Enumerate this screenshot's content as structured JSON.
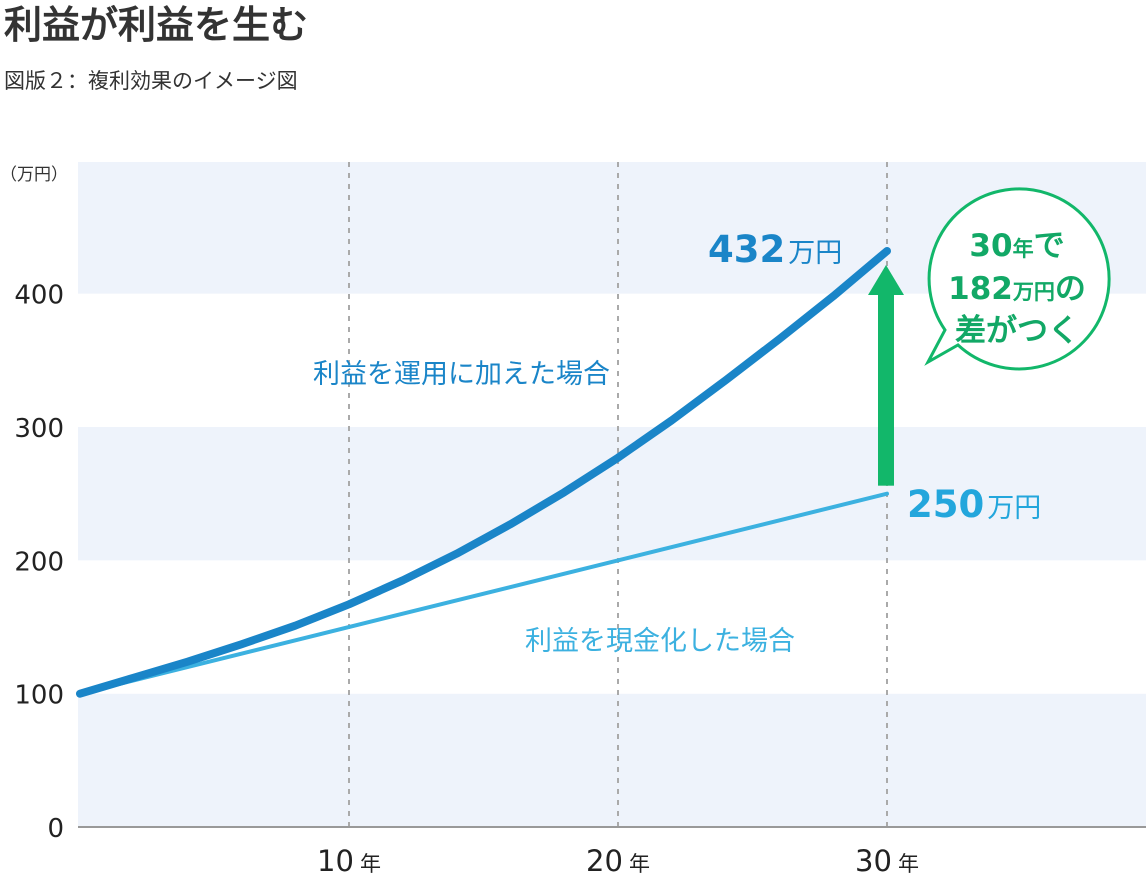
{
  "header": {
    "title": "利益が利益を生む",
    "subtitle": "図版２：複利効果のイメージ図"
  },
  "chart_data": {
    "type": "line",
    "y_unit": "（万円）",
    "xlim": [
      0,
      38
    ],
    "ylim": [
      0,
      500
    ],
    "y_ticks": [
      0,
      100,
      200,
      300,
      400
    ],
    "y_tick_labels": [
      "0",
      "100",
      "200",
      "300",
      "400"
    ],
    "x_ticks": [
      {
        "value": 10,
        "num": "10",
        "suffix": "年"
      },
      {
        "value": 20,
        "num": "20",
        "suffix": "年"
      },
      {
        "value": 30,
        "num": "30",
        "suffix": "年"
      }
    ],
    "grid": {
      "vertical_dashed": true,
      "horizontal_bands": true
    },
    "series": [
      {
        "name": "利益を運用に加えた場合",
        "color": "#1a85c8",
        "x": [
          0,
          2,
          4,
          6,
          8,
          10,
          12,
          14,
          16,
          18,
          20,
          22,
          24,
          26,
          28,
          30
        ],
        "values": [
          100,
          112,
          124,
          137,
          151,
          167,
          185,
          205,
          227,
          251,
          277,
          305,
          335,
          366,
          398,
          432
        ]
      },
      {
        "name": "利益を現金化した場合",
        "color": "#3cb1e0",
        "x": [
          0,
          30
        ],
        "values": [
          100,
          250
        ]
      }
    ],
    "annotations": {
      "end_compound": {
        "value": "432",
        "unit": "万円"
      },
      "end_simple": {
        "value": "250",
        "unit": "万円"
      },
      "bubble": {
        "line1_num": "30",
        "line1_small": "年",
        "line1_tail": "で",
        "line2_num": "182",
        "line2_small": "万円",
        "line2_tail": "の",
        "line3": "差がつく"
      },
      "arrow_color": "#12b76a"
    }
  }
}
